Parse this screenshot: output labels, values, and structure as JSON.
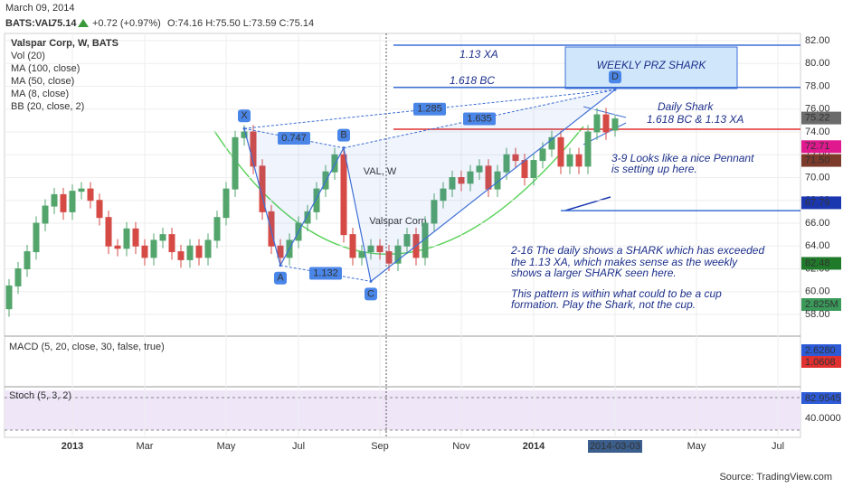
{
  "chart_data": {
    "type": "candlestick",
    "header": {
      "date": "March 09, 2014",
      "symbol": "BATS:VAL",
      "last": 75.14,
      "change": "+0.72 (+0.97%)",
      "ohlc": "O:74.16 H:75.50 L:73.59 C:75.14"
    },
    "legend": [
      "Valspar Corp, W, BATS",
      "Vol (20)",
      "MA (100, close)",
      "MA (50, close)",
      "MA (8, close)",
      "BB (20, close, 2)"
    ],
    "watermark": {
      "symbol": "VAL, W",
      "name": "Valspar Corp"
    },
    "categories": [
      null,
      null,
      null,
      null,
      null,
      null,
      null,
      "2013",
      null,
      null,
      null,
      null,
      null,
      null,
      null,
      "Mar",
      null,
      null,
      null,
      null,
      null,
      null,
      null,
      null,
      "May",
      null,
      null,
      null,
      null,
      null,
      null,
      null,
      "Jul",
      null,
      null,
      null,
      null,
      null,
      null,
      null,
      null,
      "Sep",
      null,
      null,
      null,
      null,
      null,
      null,
      null,
      null,
      "Nov",
      null,
      null,
      null,
      null,
      null,
      null,
      null,
      "2014",
      null,
      null,
      null,
      null,
      null,
      null,
      null,
      null,
      "2014-03-03",
      null,
      null,
      null,
      null,
      null,
      null,
      null,
      null,
      "May",
      null,
      null,
      null,
      null,
      null,
      null,
      null,
      null,
      "Jul"
    ],
    "open": [
      58.5,
      60.5,
      62,
      63.5,
      66,
      67.5,
      68.5,
      67,
      68.8,
      69,
      68,
      66.5,
      64,
      63.8,
      65.5,
      64,
      63,
      64.5,
      65,
      63.5,
      62.8,
      64,
      63,
      64.5,
      66.5,
      69,
      73.5,
      74,
      71,
      67,
      64,
      63,
      64.5,
      66,
      67,
      69,
      70.5,
      72,
      65,
      63,
      63.5,
      64,
      63.5,
      62.5,
      64,
      65,
      63,
      66,
      68,
      69,
      70,
      69.5,
      70.5,
      71,
      69,
      70.5,
      72,
      71.5,
      70,
      71.5,
      72.5,
      73.5,
      71,
      72,
      71,
      74,
      75.5,
      74.16,
      null,
      null,
      null,
      null,
      null,
      null,
      null,
      null,
      null,
      null,
      null,
      null,
      null,
      null,
      null,
      null,
      null,
      null
    ],
    "high": [
      61.1,
      62.6,
      64.1,
      66.6,
      68.1,
      69.1,
      69.1,
      69.4,
      69.6,
      69.6,
      68.6,
      67.1,
      64.6,
      66.1,
      66.1,
      64.6,
      65.1,
      65.6,
      65.6,
      64.1,
      64.6,
      64.6,
      65.1,
      67.1,
      69.6,
      74.1,
      74.6,
      74.6,
      71.6,
      67.6,
      64.6,
      65.1,
      66.6,
      67.6,
      69.6,
      71.1,
      72.6,
      72.6,
      65.6,
      64.1,
      64.6,
      64.6,
      64.1,
      64.6,
      65.6,
      65.6,
      66.6,
      68.6,
      69.6,
      70.6,
      70.6,
      71.1,
      71.6,
      71.6,
      71.1,
      72.6,
      72.6,
      72.1,
      72.1,
      73.1,
      74.1,
      74.1,
      72.6,
      72.6,
      74.6,
      76.1,
      76.1,
      75.5,
      null,
      null,
      null,
      null,
      null,
      null,
      null,
      null,
      null,
      null,
      null,
      null,
      null,
      null,
      null,
      null,
      null,
      null
    ],
    "low": [
      57.8,
      59.8,
      61.3,
      62.8,
      65.3,
      66.8,
      66.3,
      66.3,
      68.1,
      67.3,
      65.8,
      63.3,
      63.1,
      63.1,
      63.3,
      62.3,
      62.3,
      63.8,
      62.8,
      62.1,
      62.1,
      62.3,
      62.3,
      63.8,
      65.8,
      68.3,
      72.8,
      70.3,
      66.3,
      63.3,
      62.3,
      62.3,
      63.8,
      65.3,
      66.3,
      68.3,
      69.8,
      64.3,
      62.3,
      62.3,
      62.8,
      62.8,
      61.8,
      61.8,
      63.3,
      62.3,
      62.3,
      65.3,
      67.3,
      68.3,
      68.8,
      68.8,
      69.8,
      68.3,
      68.3,
      69.8,
      70.8,
      69.3,
      69.3,
      70.8,
      71.8,
      70.3,
      70.3,
      70.3,
      70.3,
      73.3,
      73.3,
      73.59,
      null,
      null,
      null,
      null,
      null,
      null,
      null,
      null,
      null,
      null,
      null,
      null,
      null,
      null,
      null,
      null,
      null,
      null
    ],
    "close": [
      60.5,
      62,
      63.5,
      66,
      67.5,
      68.5,
      67,
      68.8,
      69,
      68,
      66.5,
      64,
      63.8,
      65.5,
      64,
      63,
      64.5,
      65,
      63.5,
      62.8,
      64,
      63,
      64.5,
      66.5,
      69,
      73.5,
      74,
      71,
      67,
      64,
      63,
      64.5,
      66,
      67,
      69,
      70.5,
      72,
      65,
      63,
      63.5,
      64,
      63.5,
      62.5,
      64,
      65,
      63,
      66,
      68,
      69,
      70,
      69.5,
      70.5,
      71,
      69,
      70.5,
      72,
      71.5,
      70,
      71.5,
      72.5,
      73.5,
      71,
      72,
      71,
      74,
      75.5,
      74,
      75.14,
      null,
      null,
      null,
      null,
      null,
      null,
      null,
      null,
      null,
      null,
      null,
      null,
      null,
      null,
      null,
      null,
      null,
      null
    ],
    "up_color": "#53a56c",
    "down_color": "#d64a45",
    "ylim": [
      57,
      83
    ],
    "yticks": [
      {
        "value": 58,
        "label": "58.00"
      },
      {
        "value": 60,
        "label": "60.00"
      },
      {
        "value": 62,
        "label": "62.00"
      },
      {
        "value": 64,
        "label": "64.00"
      },
      {
        "value": 66,
        "label": "66.00"
      },
      {
        "value": 68,
        "label": "68.00"
      },
      {
        "value": 70,
        "label": "70.00"
      },
      {
        "value": 72,
        "label": "72.00"
      },
      {
        "value": 74,
        "label": "74.00"
      },
      {
        "value": 76,
        "label": "76.00"
      },
      {
        "value": 78,
        "label": "78.00"
      },
      {
        "value": 80,
        "label": "80.00"
      },
      {
        "value": 82,
        "label": "82.00"
      }
    ],
    "grid": true,
    "price_tags": [
      {
        "value": 75.22,
        "color": "#6b6b6b"
      },
      {
        "value": 72.71,
        "color": "#e0198f"
      },
      {
        "value": 71.5,
        "label": "71.50",
        "color": "#7b3a2a"
      },
      {
        "value": 67.79,
        "color": "#1a37b0"
      },
      {
        "value": 62.48,
        "color": "#1f7a2a"
      }
    ],
    "levels": [
      {
        "value": 81.6,
        "color": "#3d6fd6"
      },
      {
        "value": 77.9,
        "color": "#3d6fd6"
      },
      {
        "value": 74.24,
        "color": "#e03030"
      },
      {
        "value": 67.1,
        "color": "#3d6fd6"
      }
    ],
    "pattern": {
      "points": [
        {
          "label": "X",
          "at": 26,
          "price": 74.3
        },
        {
          "label": "A",
          "at": 30,
          "price": 62.3
        },
        {
          "label": "B",
          "at": 37,
          "price": 72.6
        },
        {
          "label": "C",
          "at": 40,
          "price": 60.9
        },
        {
          "label": "D",
          "at": 67,
          "price": 77.7
        }
      ],
      "ratios": [
        "0.747",
        "1.132",
        "1.285",
        "1.635"
      ]
    },
    "level_texts": [
      "1.13 XA",
      "1.618 BC"
    ],
    "prz": "WEEKLY PRZ SHARK",
    "annotations": [
      "Daily Shark",
      "1.618 BC & 1.13 XA",
      "3-9  Looks like a nice Pennant",
      "is setting up here.",
      "2-16  The daily shows a SHARK which has exceeded",
      "the 1.13 XA, which makes sense as the weekly",
      "shows a larger SHARK seen here.",
      "This pattern is within what could to be a cup",
      "formation.  Play the Shark, not the cup."
    ],
    "volume_tag": "2.825M",
    "macd": {
      "title": "MACD (5, 20, close, 30, false, true)",
      "tags": [
        "2.6280",
        "1.0608"
      ]
    },
    "stoch": {
      "title": "Stoch (5, 3, 2)",
      "tags": [
        "82.9545",
        "40.0000"
      ]
    },
    "source": "Source: TradingView.com"
  }
}
